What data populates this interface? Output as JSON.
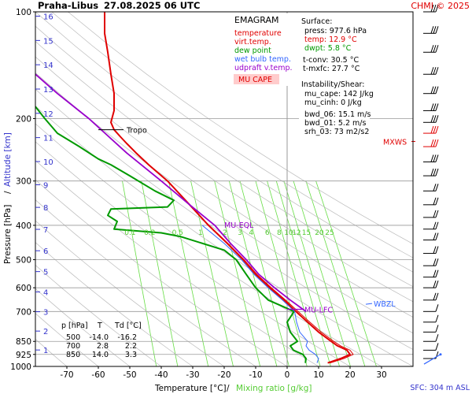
{
  "header": {
    "station": "Praha-Libus",
    "datetime": "27.08.2025 06 UTC",
    "credit": "CHMI © 2025"
  },
  "legend": {
    "title": "EMAGRAM",
    "items": [
      {
        "label": "temperature",
        "color": "#e00000"
      },
      {
        "label": "virt.temp.",
        "color": "#e00000"
      },
      {
        "label": "dew point",
        "color": "#009900"
      },
      {
        "label": "wet bulb temp.",
        "color": "#3366ff"
      },
      {
        "label": "udpraft v.temp.",
        "color": "#9900cc"
      }
    ],
    "badge": "MU CAPE"
  },
  "surface": {
    "title": "Surface:",
    "press": "press: 977.6 hPa",
    "temp": "temp: 12.9 °C",
    "dwpt": "dwpt: 5.8 °C",
    "tconv": "t-conv: 30.5 °C",
    "tmxfc": "t-mxfc: 27.7 °C"
  },
  "instability": {
    "title": "Instability/Shear:",
    "mu_cape": "mu_cape: 142 J/kg",
    "mu_cinh": "mu_cinh: 0 J/kg",
    "bwd_06": "bwd_06: 15.1 m/s",
    "bwd_01": "bwd_01: 5.2 m/s",
    "srh_03": "srh_03: 73 m2/s2"
  },
  "table": {
    "headers": [
      "p [hPa]",
      "T",
      "Td [°C]"
    ],
    "rows": [
      [
        "500",
        "-14.0",
        "-16.2"
      ],
      [
        "700",
        "2.8",
        "2.2"
      ],
      [
        "850",
        "14.0",
        "3.3"
      ]
    ]
  },
  "annotations": {
    "tropo": "Tropo",
    "mu_eql": "MU-EQL",
    "mu_lfc": "MU-LFC",
    "wbzl": "WBZL",
    "mxws": "MXWS"
  },
  "footer": {
    "sfc": "SFC: 304 m ASL"
  },
  "colors": {
    "temperature": "#e00000",
    "dewpoint": "#009900",
    "wetbulb": "#3366ff",
    "parcel": "#9900cc",
    "mixing": "#66dd44",
    "isotherm": "#999999",
    "axis_label_blue": "#3333cc",
    "mixing_label": "#55cc33"
  },
  "chart_data": {
    "type": "line",
    "xlabel": "Temperature [°C]",
    "xlabel_extra": "Mixing ratio [g/kg]",
    "ylabel": "Pressure [hPa]",
    "ylabel_extra": "Altitude [km]",
    "xlim": [
      -80,
      40
    ],
    "ylim": [
      1000,
      100
    ],
    "y_scale": "log",
    "x_ticks": [
      -70,
      -60,
      -50,
      -40,
      -30,
      -20,
      -10,
      0,
      10,
      20,
      30
    ],
    "y_ticks": [
      100,
      200,
      300,
      400,
      500,
      600,
      700,
      850,
      925,
      1000
    ],
    "altitude_ticks_km": [
      1,
      2,
      3,
      4,
      5,
      6,
      7,
      8,
      9,
      10,
      11,
      12,
      13,
      14,
      15,
      16
    ],
    "mixing_ratio_labels": [
      "0.1",
      "0.2",
      "0.5",
      "1",
      "2",
      "3",
      "4",
      "6",
      "8",
      "10",
      "12",
      "15",
      "20",
      "25"
    ],
    "mixing_ratio_label_pressure": 400,
    "grid": true,
    "series": [
      {
        "name": "temperature",
        "points": [
          [
            12.9,
            977.6
          ],
          [
            17,
            950
          ],
          [
            20,
            925
          ],
          [
            19,
            900
          ],
          [
            16,
            875
          ],
          [
            14,
            850
          ],
          [
            10,
            800
          ],
          [
            6.5,
            750
          ],
          [
            2.8,
            700
          ],
          [
            -1,
            650
          ],
          [
            -5.5,
            600
          ],
          [
            -10,
            550
          ],
          [
            -14,
            500
          ],
          [
            -19,
            450
          ],
          [
            -25,
            400
          ],
          [
            -31,
            350
          ],
          [
            -38,
            300
          ],
          [
            -44,
            270
          ],
          [
            -48,
            250
          ],
          [
            -51,
            235
          ],
          [
            -53,
            225
          ],
          [
            -55,
            215
          ],
          [
            -56,
            205
          ],
          [
            -55,
            190
          ],
          [
            -55,
            170
          ],
          [
            -56,
            150
          ],
          [
            -57,
            130
          ],
          [
            -58,
            115
          ],
          [
            -58,
            100
          ]
        ]
      },
      {
        "name": "virt.temp.",
        "points": [
          [
            13.6,
            977.6
          ],
          [
            18,
            950
          ],
          [
            21,
            925
          ],
          [
            20,
            900
          ],
          [
            17,
            875
          ],
          [
            14.8,
            850
          ],
          [
            10.8,
            800
          ],
          [
            7.2,
            750
          ],
          [
            3.5,
            700
          ],
          [
            -0.5,
            650
          ],
          [
            -5,
            600
          ],
          [
            -9.6,
            550
          ],
          [
            -13.7,
            500
          ],
          [
            -18.8,
            450
          ],
          [
            -24.9,
            400
          ],
          [
            -31,
            350
          ],
          [
            -38,
            300
          ],
          [
            -44,
            270
          ],
          [
            -48,
            250
          ],
          [
            -51,
            235
          ],
          [
            -53,
            225
          ],
          [
            -55,
            215
          ],
          [
            -56,
            205
          ],
          [
            -55,
            190
          ],
          [
            -55,
            170
          ],
          [
            -56,
            150
          ],
          [
            -57,
            130
          ],
          [
            -58,
            115
          ],
          [
            -58,
            100
          ]
        ]
      },
      {
        "name": "dew point",
        "points": [
          [
            5.8,
            977.6
          ],
          [
            6,
            950
          ],
          [
            5,
            925
          ],
          [
            2,
            900
          ],
          [
            1,
            875
          ],
          [
            3.3,
            850
          ],
          [
            1,
            800
          ],
          [
            0,
            750
          ],
          [
            2.2,
            700
          ],
          [
            -1,
            680
          ],
          [
            -6,
            650
          ],
          [
            -10,
            600
          ],
          [
            -13,
            550
          ],
          [
            -16.2,
            500
          ],
          [
            -20,
            470
          ],
          [
            -34,
            430
          ],
          [
            -40,
            420
          ],
          [
            -55,
            410
          ],
          [
            -54,
            390
          ],
          [
            -57,
            375
          ],
          [
            -56,
            360
          ],
          [
            -38,
            355
          ],
          [
            -36,
            340
          ],
          [
            -42,
            320
          ],
          [
            -50,
            290
          ],
          [
            -56,
            270
          ],
          [
            -60,
            260
          ],
          [
            -66,
            240
          ],
          [
            -73,
            220
          ],
          [
            -77,
            200
          ],
          [
            -80,
            185
          ]
        ]
      },
      {
        "name": "wet bulb temp.",
        "points": [
          [
            9.5,
            977.6
          ],
          [
            10,
            950
          ],
          [
            9,
            925
          ],
          [
            7,
            900
          ],
          [
            6,
            875
          ],
          [
            6.5,
            850
          ],
          [
            4,
            800
          ],
          [
            3,
            750
          ],
          [
            2.4,
            700
          ],
          [
            -1.5,
            650
          ],
          [
            -6,
            600
          ],
          [
            -10.5,
            550
          ],
          [
            -14.5,
            500
          ],
          [
            -20,
            450
          ],
          [
            -27,
            400
          ]
        ]
      },
      {
        "name": "udpraft v.temp.",
        "points": [
          [
            6,
            700
          ],
          [
            1,
            650
          ],
          [
            -4,
            600
          ],
          [
            -9,
            550
          ],
          [
            -13,
            500
          ],
          [
            -18,
            450
          ],
          [
            -23,
            400
          ],
          [
            -31,
            350
          ],
          [
            -40,
            300
          ],
          [
            -51,
            250
          ],
          [
            -63,
            200
          ],
          [
            -73,
            170
          ],
          [
            -80,
            150
          ]
        ]
      }
    ],
    "annotations": [
      {
        "label": "Tropo",
        "pressure": 215
      },
      {
        "label": "MU-EQL",
        "pressure": 400
      },
      {
        "label": "MU-LFC",
        "pressure": 690
      },
      {
        "label": "WBZL",
        "pressure": 670
      },
      {
        "label": "MXWS",
        "pressure": 230
      }
    ]
  }
}
